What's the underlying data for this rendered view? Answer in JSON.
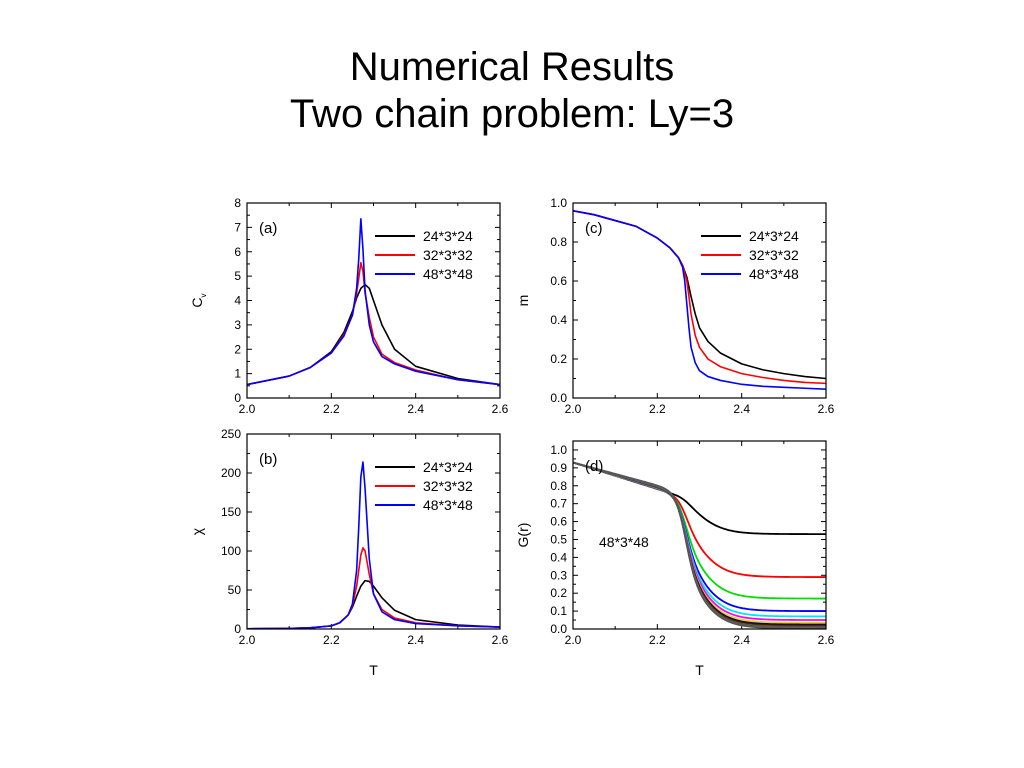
{
  "slide": {
    "title_line1": "Numerical Results",
    "title_line2": "Two chain problem: Ly=3"
  },
  "chart_data": [
    {
      "id": "a",
      "type": "line",
      "panel_label": "(a)",
      "xlabel": "",
      "ylabel": "C",
      "ylabel_sub": "v",
      "xlim": [
        2.0,
        2.6
      ],
      "ylim": [
        0,
        8
      ],
      "xticks": [
        "2.0",
        "2.2",
        "2.4",
        "2.6"
      ],
      "yticks": [
        "0",
        "1",
        "2",
        "3",
        "4",
        "5",
        "6",
        "7",
        "8"
      ],
      "legend_position": "top-right",
      "series": [
        {
          "name": "24*3*24",
          "color": "#000000",
          "x": [
            2.0,
            2.1,
            2.15,
            2.2,
            2.23,
            2.25,
            2.26,
            2.27,
            2.28,
            2.29,
            2.3,
            2.32,
            2.35,
            2.4,
            2.5,
            2.6
          ],
          "y": [
            0.55,
            0.9,
            1.25,
            1.9,
            2.7,
            3.55,
            4.1,
            4.5,
            4.65,
            4.5,
            4.0,
            3.0,
            2.0,
            1.3,
            0.8,
            0.55
          ]
        },
        {
          "name": "32*3*32",
          "color": "#ff0000",
          "x": [
            2.0,
            2.1,
            2.15,
            2.2,
            2.23,
            2.25,
            2.26,
            2.265,
            2.27,
            2.275,
            2.28,
            2.29,
            2.3,
            2.32,
            2.35,
            2.4,
            2.5,
            2.6
          ],
          "y": [
            0.55,
            0.9,
            1.25,
            1.85,
            2.6,
            3.4,
            4.3,
            4.9,
            5.55,
            5.2,
            4.3,
            3.3,
            2.5,
            1.8,
            1.45,
            1.15,
            0.75,
            0.55
          ]
        },
        {
          "name": "48*3*48",
          "color": "#0000ff",
          "x": [
            2.0,
            2.1,
            2.15,
            2.2,
            2.23,
            2.25,
            2.26,
            2.265,
            2.27,
            2.275,
            2.28,
            2.29,
            2.3,
            2.32,
            2.35,
            2.4,
            2.5,
            2.6
          ],
          "y": [
            0.55,
            0.9,
            1.25,
            1.85,
            2.55,
            3.4,
            4.5,
            5.7,
            7.35,
            6.1,
            4.4,
            3.0,
            2.3,
            1.7,
            1.4,
            1.1,
            0.75,
            0.55
          ]
        }
      ]
    },
    {
      "id": "c",
      "type": "line",
      "panel_label": "(c)",
      "xlabel": "",
      "ylabel": "m",
      "xlim": [
        2.0,
        2.6
      ],
      "ylim": [
        0,
        1.0
      ],
      "xticks": [
        "2.0",
        "2.2",
        "2.4",
        "2.6"
      ],
      "yticks": [
        "0.0",
        "0.2",
        "0.4",
        "0.6",
        "0.8",
        "1.0"
      ],
      "legend_position": "top-right",
      "series": [
        {
          "name": "24*3*24",
          "color": "#000000",
          "x": [
            2.0,
            2.05,
            2.1,
            2.15,
            2.2,
            2.23,
            2.25,
            2.26,
            2.27,
            2.28,
            2.29,
            2.3,
            2.32,
            2.35,
            2.4,
            2.45,
            2.5,
            2.55,
            2.6
          ],
          "y": [
            0.96,
            0.94,
            0.91,
            0.88,
            0.82,
            0.77,
            0.72,
            0.68,
            0.62,
            0.52,
            0.43,
            0.36,
            0.29,
            0.23,
            0.175,
            0.145,
            0.125,
            0.11,
            0.1
          ]
        },
        {
          "name": "32*3*32",
          "color": "#ff0000",
          "x": [
            2.0,
            2.05,
            2.1,
            2.15,
            2.2,
            2.23,
            2.25,
            2.26,
            2.27,
            2.275,
            2.28,
            2.29,
            2.3,
            2.32,
            2.35,
            2.4,
            2.45,
            2.5,
            2.55,
            2.6
          ],
          "y": [
            0.96,
            0.94,
            0.91,
            0.88,
            0.82,
            0.77,
            0.72,
            0.68,
            0.6,
            0.52,
            0.43,
            0.32,
            0.26,
            0.2,
            0.16,
            0.125,
            0.105,
            0.09,
            0.08,
            0.075
          ]
        },
        {
          "name": "48*3*48",
          "color": "#0000ff",
          "x": [
            2.0,
            2.05,
            2.1,
            2.15,
            2.2,
            2.23,
            2.25,
            2.26,
            2.265,
            2.27,
            2.275,
            2.28,
            2.29,
            2.3,
            2.32,
            2.35,
            2.4,
            2.45,
            2.5,
            2.55,
            2.6
          ],
          "y": [
            0.96,
            0.94,
            0.91,
            0.88,
            0.82,
            0.77,
            0.72,
            0.67,
            0.6,
            0.48,
            0.36,
            0.26,
            0.18,
            0.14,
            0.11,
            0.09,
            0.07,
            0.06,
            0.055,
            0.05,
            0.045
          ]
        }
      ]
    },
    {
      "id": "b",
      "type": "line",
      "panel_label": "(b)",
      "xlabel": "T",
      "ylabel": "χ",
      "xlim": [
        2.0,
        2.6
      ],
      "ylim": [
        0,
        250
      ],
      "xticks": [
        "2.0",
        "2.2",
        "2.4",
        "2.6"
      ],
      "yticks": [
        "0",
        "50",
        "100",
        "150",
        "200",
        "250"
      ],
      "legend_position": "top-right",
      "series": [
        {
          "name": "24*3*24",
          "color": "#000000",
          "x": [
            2.0,
            2.1,
            2.15,
            2.2,
            2.22,
            2.24,
            2.25,
            2.26,
            2.27,
            2.28,
            2.29,
            2.3,
            2.32,
            2.35,
            2.4,
            2.5,
            2.6
          ],
          "y": [
            0.3,
            0.8,
            1.5,
            4,
            8,
            18,
            28,
            42,
            55,
            62,
            61,
            55,
            40,
            24,
            12,
            5,
            2.5
          ]
        },
        {
          "name": "32*3*32",
          "color": "#ff0000",
          "x": [
            2.0,
            2.1,
            2.15,
            2.2,
            2.22,
            2.24,
            2.25,
            2.26,
            2.265,
            2.27,
            2.275,
            2.28,
            2.29,
            2.3,
            2.32,
            2.35,
            2.4,
            2.5,
            2.6
          ],
          "y": [
            0.3,
            0.8,
            1.5,
            4,
            8,
            18,
            30,
            55,
            75,
            95,
            104,
            100,
            70,
            45,
            25,
            14,
            8,
            4,
            2.5
          ]
        },
        {
          "name": "48*3*48",
          "color": "#0000ff",
          "x": [
            2.0,
            2.1,
            2.15,
            2.2,
            2.22,
            2.24,
            2.25,
            2.26,
            2.265,
            2.27,
            2.275,
            2.28,
            2.29,
            2.3,
            2.32,
            2.35,
            2.4,
            2.5,
            2.6
          ],
          "y": [
            0.3,
            0.8,
            1.5,
            4,
            8,
            18,
            32,
            75,
            130,
            195,
            214,
            180,
            90,
            45,
            22,
            12,
            7,
            4,
            2.5
          ]
        }
      ]
    },
    {
      "id": "d",
      "type": "line",
      "panel_label": "(d)",
      "annotation": "48*3*48",
      "xlabel": "T",
      "ylabel": "G(r)",
      "xlim": [
        2.0,
        2.6
      ],
      "ylim": [
        0,
        1.05
      ],
      "xticks": [
        "2.0",
        "2.2",
        "2.4",
        "2.6"
      ],
      "yticks": [
        "0.0",
        "0.1",
        "0.2",
        "0.3",
        "0.4",
        "0.5",
        "0.6",
        "0.7",
        "0.8",
        "0.9",
        "1.0"
      ],
      "series": [
        {
          "color": "#000000",
          "high_T": 0.53,
          "mid": 0.8
        },
        {
          "color": "#ff0000",
          "high_T": 0.29,
          "mid": 0.7
        },
        {
          "color": "#00dd00",
          "high_T": 0.17,
          "mid": 0.62
        },
        {
          "color": "#0000ff",
          "high_T": 0.1,
          "mid": 0.57
        },
        {
          "color": "#00e5ff",
          "high_T": 0.07,
          "mid": 0.55
        },
        {
          "color": "#ff00ff",
          "high_T": 0.05,
          "mid": 0.53
        },
        {
          "color": "#dddd00",
          "high_T": 0.035,
          "mid": 0.51
        },
        {
          "color": "#000080",
          "high_T": 0.025,
          "mid": 0.5
        },
        {
          "color": "#800000",
          "high_T": 0.018,
          "mid": 0.49
        },
        {
          "color": "#008000",
          "high_T": 0.013,
          "mid": 0.48
        },
        {
          "color": "#808000",
          "high_T": 0.01,
          "mid": 0.475
        },
        {
          "color": "#800080",
          "high_T": 0.008,
          "mid": 0.47
        },
        {
          "color": "#008080",
          "high_T": 0.006,
          "mid": 0.465
        },
        {
          "color": "#808080",
          "high_T": 0.005,
          "mid": 0.46
        },
        {
          "color": "#555555",
          "high_T": 0.004,
          "mid": 0.455
        }
      ]
    }
  ]
}
